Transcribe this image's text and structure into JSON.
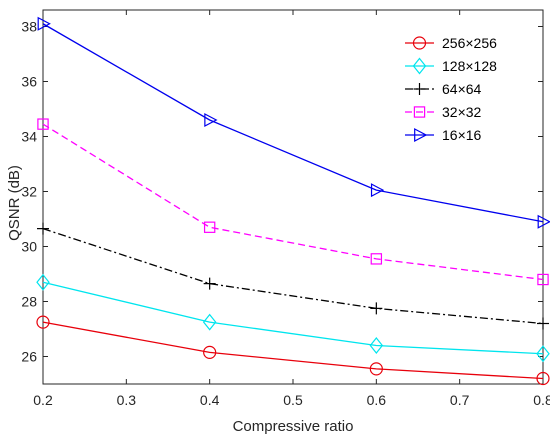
{
  "chart_data": {
    "type": "line",
    "title": "",
    "xlabel": "Compressive ratio",
    "ylabel": "QSNR (dB)",
    "xlim": [
      0.2,
      0.8
    ],
    "ylim": [
      25,
      38.6
    ],
    "grid": false,
    "legend_position": "top-right",
    "x": [
      0.2,
      0.4,
      0.6,
      0.8
    ],
    "x_ticks": [
      "0.2",
      "0.3",
      "0.4",
      "0.5",
      "0.6",
      "0.7",
      "0.8"
    ],
    "y_ticks": [
      "26",
      "28",
      "30",
      "32",
      "34",
      "36",
      "38"
    ],
    "series": [
      {
        "name": "256×256",
        "color": "#e8000b",
        "marker": "circle",
        "line_style": "solid",
        "values": [
          27.25,
          26.15,
          25.55,
          25.2
        ]
      },
      {
        "name": "128×128",
        "color": "#00e5ee",
        "marker": "diamond",
        "line_style": "solid",
        "values": [
          28.7,
          27.25,
          26.4,
          26.1
        ]
      },
      {
        "name": "64×64",
        "color": "#000000",
        "marker": "plus",
        "line_style": "dashdot",
        "values": [
          30.65,
          28.65,
          27.75,
          27.2
        ]
      },
      {
        "name": "32×32",
        "color": "#ff00ff",
        "marker": "square",
        "line_style": "dashed",
        "values": [
          34.45,
          30.7,
          29.55,
          28.8
        ]
      },
      {
        "name": "16×16",
        "color": "#0000ee",
        "marker": "triangle-right",
        "line_style": "solid",
        "values": [
          38.1,
          34.6,
          32.05,
          30.9
        ]
      }
    ]
  }
}
